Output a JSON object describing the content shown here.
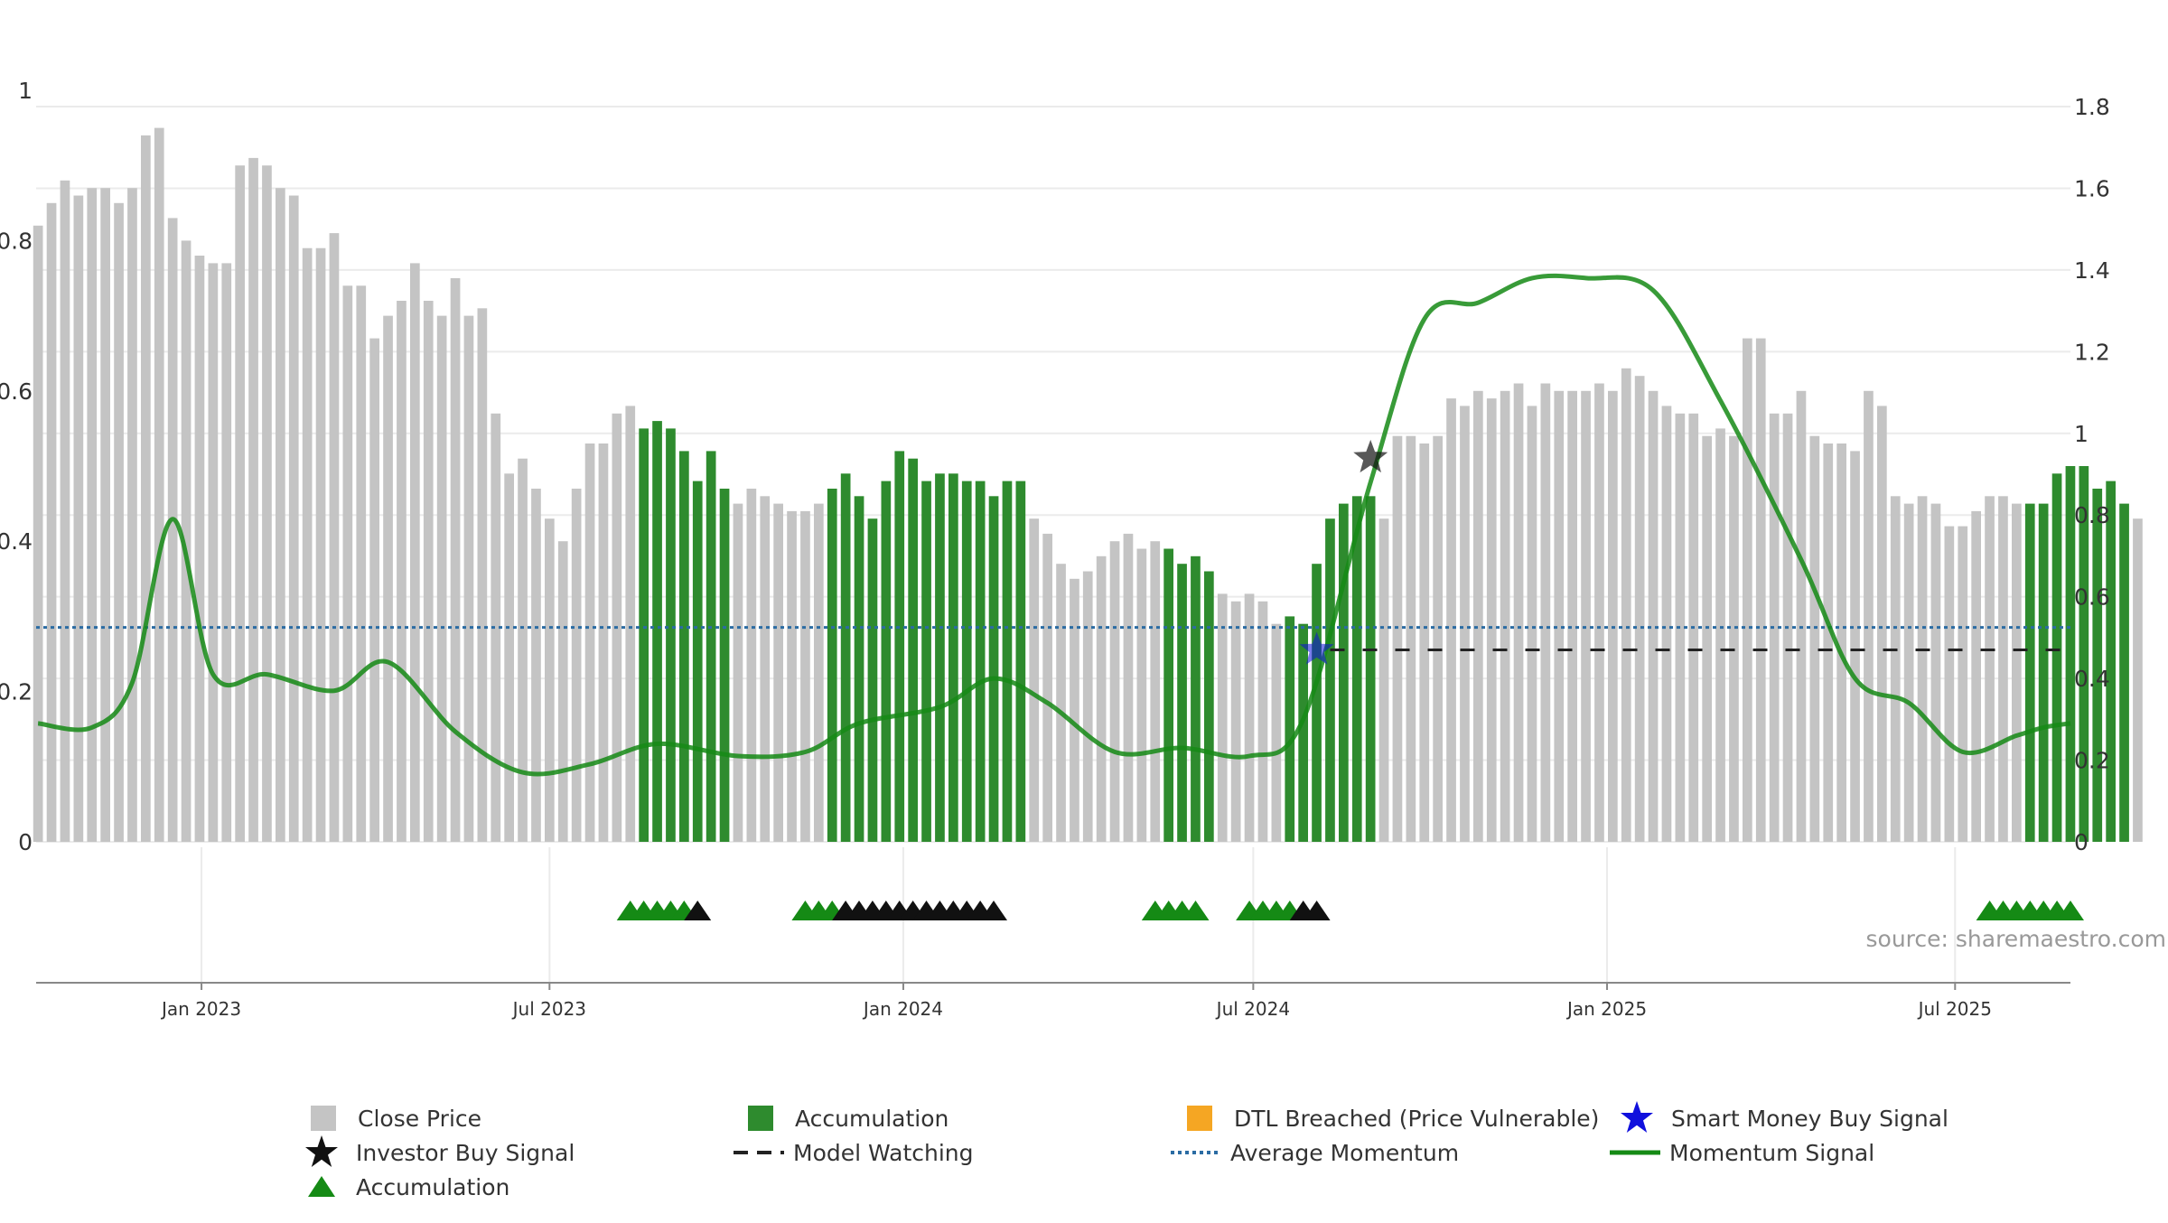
{
  "source_note": "source: sharemaestro.com",
  "colors": {
    "close_price": "#c4c4c4",
    "accumulation": "#2e8b2e",
    "dtl_breached": "#f5a623",
    "smart_money": "#1010dd",
    "investor_buy": "#111111",
    "average_momentum": "#2b6ca3",
    "momentum_signal": "#158a15",
    "model_watching": "#222222"
  },
  "legend": {
    "close_price": "Close Price",
    "accumulation_bar": "Accumulation",
    "dtl_breached": "DTL Breached (Price Vulnerable)",
    "smart_money": "Smart Money Buy Signal",
    "investor_buy": "Investor Buy Signal",
    "model_watching": "Model Watching",
    "average_momentum": "Average Momentum",
    "momentum_signal": "Momentum Signal",
    "accumulation_marker": "Accumulation"
  },
  "chart_data": {
    "type": "bar",
    "x_range": [
      "2022-10-07",
      "2025-08-30"
    ],
    "x_ticks": [
      {
        "date": "2023-01-01",
        "label": "Jan 2023"
      },
      {
        "date": "2023-07-01",
        "label": "Jul 2023"
      },
      {
        "date": "2024-01-01",
        "label": "Jan 2024"
      },
      {
        "date": "2024-07-01",
        "label": "Jul 2024"
      },
      {
        "date": "2025-01-01",
        "label": "Jan 2025"
      },
      {
        "date": "2025-07-01",
        "label": "Jul 2025"
      }
    ],
    "left_axis": {
      "ylim": [
        0,
        1
      ],
      "ticks": [
        "0",
        "0.2",
        "0.4",
        "0.6",
        "0.8",
        "1"
      ]
    },
    "right_axis": {
      "ylim": [
        0,
        1.8
      ],
      "ticks": [
        "0",
        "0.2",
        "0.4",
        "0.6",
        "0.8",
        "1",
        "1.2",
        "1.4",
        "1.6",
        "1.8"
      ]
    },
    "grid": true,
    "bars": {
      "first_week": "2022-10-08",
      "weekly_close": [
        0.82,
        0.85,
        0.88,
        0.86,
        0.87,
        0.87,
        0.85,
        0.87,
        0.94,
        0.95,
        0.83,
        0.8,
        0.78,
        0.77,
        0.77,
        0.9,
        0.91,
        0.9,
        0.87,
        0.86,
        0.79,
        0.79,
        0.81,
        0.74,
        0.74,
        0.67,
        0.7,
        0.72,
        0.77,
        0.72,
        0.7,
        0.75,
        0.7,
        0.71,
        0.57,
        0.49,
        0.51,
        0.47,
        0.43,
        0.4,
        0.47,
        0.53,
        0.53,
        0.57,
        0.58,
        0.55,
        0.56,
        0.55,
        0.52,
        0.48,
        0.52,
        0.47,
        0.45,
        0.47,
        0.46,
        0.45,
        0.44,
        0.44,
        0.45,
        0.47,
        0.49,
        0.46,
        0.43,
        0.48,
        0.52,
        0.51,
        0.48,
        0.49,
        0.49,
        0.48,
        0.48,
        0.46,
        0.48,
        0.48,
        0.43,
        0.41,
        0.37,
        0.35,
        0.36,
        0.38,
        0.4,
        0.41,
        0.39,
        0.4,
        0.39,
        0.37,
        0.38,
        0.36,
        0.33,
        0.32,
        0.33,
        0.32,
        0.29,
        0.3,
        0.29,
        0.37,
        0.43,
        0.45,
        0.46,
        0.46,
        0.43,
        0.54,
        0.54,
        0.53,
        0.54,
        0.59,
        0.58,
        0.6,
        0.59,
        0.6,
        0.61,
        0.58,
        0.61,
        0.6,
        0.6,
        0.6,
        0.61,
        0.6,
        0.63,
        0.62,
        0.6,
        0.58,
        0.57,
        0.57,
        0.54,
        0.55,
        0.54,
        0.67,
        0.67,
        0.57,
        0.57,
        0.6,
        0.54,
        0.53,
        0.53,
        0.52,
        0.6,
        0.58,
        0.46,
        0.45,
        0.46,
        0.45,
        0.42,
        0.42,
        0.44,
        0.46,
        0.46,
        0.45,
        0.45,
        0.45,
        0.49,
        0.5,
        0.5,
        0.47,
        0.48,
        0.45,
        0.43
      ],
      "accumulation_weeks": [
        45,
        46,
        47,
        48,
        49,
        50,
        51,
        59,
        60,
        61,
        62,
        63,
        64,
        65,
        66,
        67,
        68,
        69,
        70,
        71,
        72,
        73,
        84,
        85,
        86,
        87,
        93,
        94,
        95,
        96,
        97,
        98,
        99,
        148,
        149,
        150,
        151,
        152,
        153,
        154,
        155
      ]
    },
    "momentum_signal": {
      "axis": "right",
      "points": [
        [
          "2022-10-08",
          0.29
        ],
        [
          "2022-11-05",
          0.28
        ],
        [
          "2022-11-26",
          0.39
        ],
        [
          "2022-12-17",
          0.79
        ],
        [
          "2023-01-07",
          0.41
        ],
        [
          "2023-02-04",
          0.41
        ],
        [
          "2023-03-11",
          0.37
        ],
        [
          "2023-04-08",
          0.44
        ],
        [
          "2023-05-13",
          0.27
        ],
        [
          "2023-06-17",
          0.17
        ],
        [
          "2023-07-22",
          0.19
        ],
        [
          "2023-08-26",
          0.24
        ],
        [
          "2023-10-07",
          0.21
        ],
        [
          "2023-11-11",
          0.22
        ],
        [
          "2023-12-09",
          0.29
        ],
        [
          "2024-01-20",
          0.33
        ],
        [
          "2024-02-17",
          0.4
        ],
        [
          "2024-03-16",
          0.34
        ],
        [
          "2024-04-20",
          0.22
        ],
        [
          "2024-05-25",
          0.23
        ],
        [
          "2024-06-29",
          0.21
        ],
        [
          "2024-07-27",
          0.3
        ],
        [
          "2024-08-31",
          0.88
        ],
        [
          "2024-09-28",
          1.28
        ],
        [
          "2024-10-26",
          1.32
        ],
        [
          "2024-11-23",
          1.38
        ],
        [
          "2024-12-21",
          1.38
        ],
        [
          "2025-01-25",
          1.35
        ],
        [
          "2025-03-01",
          1.08
        ],
        [
          "2025-04-12",
          0.69
        ],
        [
          "2025-05-10",
          0.4
        ],
        [
          "2025-06-07",
          0.34
        ],
        [
          "2025-07-05",
          0.22
        ],
        [
          "2025-08-02",
          0.26
        ],
        [
          "2025-08-16",
          0.28
        ],
        [
          "2025-08-30",
          0.29
        ]
      ]
    },
    "average_momentum": {
      "axis": "right",
      "value": 0.525
    },
    "model_watching": {
      "axis": "right",
      "value": 0.47,
      "start": "2024-08-10",
      "end": "2025-08-30"
    },
    "smart_money_buy_signal": [
      {
        "date": "2024-08-03",
        "value": 0.47
      }
    ],
    "investor_buy_signal": [
      {
        "date": "2024-08-31",
        "value": 0.94
      }
    ],
    "signal_markers": {
      "accumulation": [
        "2023-08-12",
        "2023-08-19",
        "2023-08-26",
        "2023-09-02",
        "2023-09-09",
        "2023-11-11",
        "2023-11-18",
        "2023-11-25",
        "2024-05-11",
        "2024-05-18",
        "2024-05-25",
        "2024-06-01",
        "2024-06-29",
        "2024-07-06",
        "2024-07-13",
        "2024-07-20",
        "2025-07-19",
        "2025-07-26",
        "2025-08-02",
        "2025-08-09",
        "2025-08-16",
        "2025-08-23",
        "2025-08-30"
      ],
      "investor_buy": [
        "2023-09-16",
        "2023-12-02",
        "2023-12-09",
        "2023-12-16",
        "2023-12-23",
        "2023-12-30",
        "2024-01-06",
        "2024-01-13",
        "2024-01-20",
        "2024-01-27",
        "2024-02-03",
        "2024-02-10",
        "2024-02-17",
        "2024-07-27",
        "2024-08-03"
      ]
    }
  }
}
